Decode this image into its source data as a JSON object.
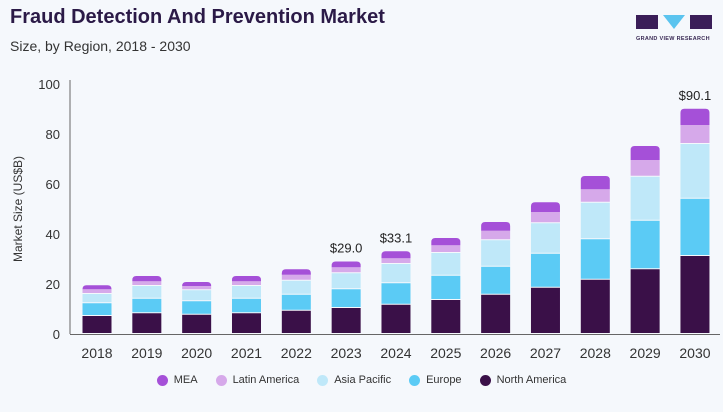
{
  "title": "Fraud Detection And Prevention Market",
  "subtitle": "Size, by Region, 2018 - 2030",
  "logo_text": "GRAND VIEW RESEARCH",
  "chart_data": {
    "type": "bar",
    "stacked": true,
    "ylabel": "Market Size (US$B)",
    "ylim": [
      0,
      100
    ],
    "yticks": [
      0,
      20,
      40,
      60,
      80,
      100
    ],
    "grid": false,
    "legend_position": "bottom",
    "categories": [
      "2018",
      "2019",
      "2020",
      "2021",
      "2022",
      "2023",
      "2024",
      "2025",
      "2026",
      "2027",
      "2028",
      "2029",
      "2030"
    ],
    "series": [
      {
        "name": "North America",
        "color": "#3a1048",
        "values": [
          7.2,
          8.3,
          7.7,
          8.3,
          9.3,
          10.4,
          11.7,
          13.6,
          15.7,
          18.5,
          21.7,
          25.9,
          31.2
        ]
      },
      {
        "name": "Europe",
        "color": "#5bcbf5",
        "values": [
          5.1,
          5.8,
          5.4,
          5.8,
          6.4,
          7.5,
          8.6,
          9.7,
          11.2,
          13.6,
          16.2,
          19.4,
          22.9
        ]
      },
      {
        "name": "Asia Pacific",
        "color": "#bfe8f9",
        "values": [
          3.7,
          5.1,
          4.4,
          5.1,
          5.6,
          6.4,
          7.7,
          9.1,
          10.6,
          12.2,
          14.6,
          17.6,
          21.9
        ]
      },
      {
        "name": "Latin America",
        "color": "#d6a9ea",
        "values": [
          1.9,
          1.9,
          1.7,
          1.9,
          2.4,
          2.4,
          2.3,
          3.1,
          3.8,
          4.5,
          5.4,
          6.7,
          7.6
        ]
      },
      {
        "name": "MEA",
        "color": "#a550d8",
        "values": [
          1.6,
          2.1,
          1.6,
          2.1,
          2.2,
          2.3,
          2.8,
          2.9,
          3.5,
          3.9,
          5.3,
          5.6,
          6.5
        ]
      }
    ],
    "annotations": [
      {
        "category": "2023",
        "label": "$29.0"
      },
      {
        "category": "2024",
        "label": "$33.1"
      },
      {
        "category": "2030",
        "label": "$90.1"
      }
    ],
    "legend_order": [
      "MEA",
      "Latin America",
      "Asia Pacific",
      "Europe",
      "North America"
    ]
  }
}
